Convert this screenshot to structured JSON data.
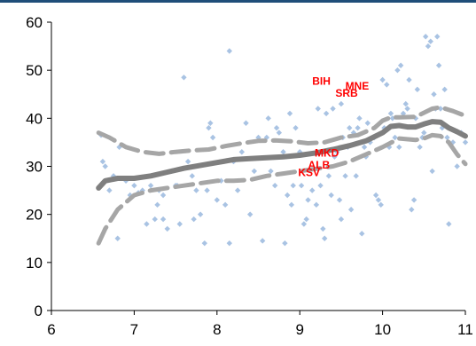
{
  "chart_data": {
    "type": "scatter",
    "xlim": [
      6,
      11
    ],
    "ylim": [
      0,
      60
    ],
    "x_ticks": [
      6,
      7,
      8,
      9,
      10,
      11
    ],
    "y_ticks": [
      0,
      10,
      20,
      30,
      40,
      50,
      60
    ],
    "grid": false,
    "legend": "none",
    "colors": {
      "points": "#a9c3e3",
      "fit": "#7f7f7f",
      "band": "#a6a6a6",
      "labels": "#ff0000",
      "axis": "#000000"
    },
    "points": [
      [
        6.6,
        36.5
      ],
      [
        6.62,
        31
      ],
      [
        6.65,
        30
      ],
      [
        6.7,
        25
      ],
      [
        6.75,
        28
      ],
      [
        6.8,
        15
      ],
      [
        6.82,
        34
      ],
      [
        6.9,
        27
      ],
      [
        6.95,
        24
      ],
      [
        7.0,
        26
      ],
      [
        7.05,
        24.5
      ],
      [
        7.1,
        25
      ],
      [
        7.15,
        18
      ],
      [
        7.2,
        26
      ],
      [
        7.25,
        19
      ],
      [
        7.28,
        22
      ],
      [
        7.3,
        25
      ],
      [
        7.35,
        24
      ],
      [
        7.35,
        19
      ],
      [
        7.4,
        17
      ],
      [
        7.45,
        29
      ],
      [
        7.5,
        26
      ],
      [
        7.52,
        26
      ],
      [
        7.55,
        18
      ],
      [
        7.6,
        48.5
      ],
      [
        7.65,
        31
      ],
      [
        7.7,
        28
      ],
      [
        7.72,
        19
      ],
      [
        7.75,
        25
      ],
      [
        7.8,
        20
      ],
      [
        7.85,
        14
      ],
      [
        7.88,
        25
      ],
      [
        7.9,
        38
      ],
      [
        7.92,
        39
      ],
      [
        7.95,
        36
      ],
      [
        8.0,
        23
      ],
      [
        8.05,
        27
      ],
      [
        8.1,
        22
      ],
      [
        8.15,
        54
      ],
      [
        8.15,
        14
      ],
      [
        8.2,
        31
      ],
      [
        8.25,
        25
      ],
      [
        8.3,
        33
      ],
      [
        8.35,
        39
      ],
      [
        8.4,
        20
      ],
      [
        8.45,
        29
      ],
      [
        8.5,
        36
      ],
      [
        8.55,
        14.5
      ],
      [
        8.6,
        36
      ],
      [
        8.62,
        40
      ],
      [
        8.65,
        29
      ],
      [
        8.7,
        26
      ],
      [
        8.72,
        38
      ],
      [
        8.75,
        37
      ],
      [
        8.8,
        33
      ],
      [
        8.82,
        14
      ],
      [
        8.85,
        24
      ],
      [
        8.88,
        41
      ],
      [
        8.9,
        22
      ],
      [
        8.92,
        26
      ],
      [
        8.95,
        38
      ],
      [
        9.0,
        33
      ],
      [
        9.02,
        26
      ],
      [
        9.05,
        18
      ],
      [
        9.08,
        19
      ],
      [
        9.1,
        23
      ],
      [
        9.15,
        25
      ],
      [
        9.2,
        22
      ],
      [
        9.22,
        42
      ],
      [
        9.25,
        26
      ],
      [
        9.28,
        17
      ],
      [
        9.3,
        15
      ],
      [
        9.32,
        41
      ],
      [
        9.35,
        28
      ],
      [
        9.38,
        24
      ],
      [
        9.4,
        42
      ],
      [
        9.42,
        32
      ],
      [
        9.45,
        33
      ],
      [
        9.48,
        23
      ],
      [
        9.5,
        19
      ],
      [
        9.5,
        43
      ],
      [
        9.52,
        36
      ],
      [
        9.55,
        28
      ],
      [
        9.58,
        34
      ],
      [
        9.6,
        38
      ],
      [
        9.62,
        21
      ],
      [
        9.65,
        37
      ],
      [
        9.68,
        28
      ],
      [
        9.7,
        38
      ],
      [
        9.72,
        40
      ],
      [
        9.75,
        16
      ],
      [
        9.78,
        34
      ],
      [
        9.8,
        32
      ],
      [
        9.82,
        39
      ],
      [
        9.85,
        35
      ],
      [
        9.9,
        36
      ],
      [
        9.92,
        24
      ],
      [
        9.95,
        23
      ],
      [
        9.98,
        22
      ],
      [
        10.0,
        48
      ],
      [
        10.02,
        38
      ],
      [
        10.05,
        47
      ],
      [
        10.08,
        34
      ],
      [
        10.1,
        41
      ],
      [
        10.12,
        40
      ],
      [
        10.15,
        36
      ],
      [
        10.18,
        50
      ],
      [
        10.2,
        34
      ],
      [
        10.22,
        51
      ],
      [
        10.25,
        41
      ],
      [
        10.28,
        43
      ],
      [
        10.3,
        42
      ],
      [
        10.32,
        48
      ],
      [
        10.35,
        21
      ],
      [
        10.38,
        23
      ],
      [
        10.4,
        40
      ],
      [
        10.42,
        46
      ],
      [
        10.45,
        34
      ],
      [
        10.48,
        36
      ],
      [
        10.5,
        37
      ],
      [
        10.52,
        57
      ],
      [
        10.55,
        55
      ],
      [
        10.58,
        56
      ],
      [
        10.6,
        29
      ],
      [
        10.62,
        45
      ],
      [
        10.64,
        42
      ],
      [
        10.66,
        57
      ],
      [
        10.68,
        51
      ],
      [
        10.7,
        42
      ],
      [
        10.72,
        38
      ],
      [
        10.75,
        46
      ],
      [
        10.78,
        36
      ],
      [
        10.8,
        18
      ],
      [
        10.85,
        35
      ],
      [
        10.9,
        30
      ],
      [
        10.95,
        37
      ],
      [
        11.0,
        35
      ]
    ],
    "fit_line": [
      [
        6.57,
        25.5
      ],
      [
        6.65,
        27
      ],
      [
        6.8,
        27.5
      ],
      [
        7.0,
        27.5
      ],
      [
        7.2,
        28
      ],
      [
        7.4,
        28.8
      ],
      [
        7.6,
        29.6
      ],
      [
        7.8,
        30.2
      ],
      [
        8.0,
        30.8
      ],
      [
        8.2,
        31.4
      ],
      [
        8.4,
        31.6
      ],
      [
        8.6,
        31.8
      ],
      [
        8.8,
        32
      ],
      [
        9.0,
        32.3
      ],
      [
        9.2,
        32.8
      ],
      [
        9.4,
        33.5
      ],
      [
        9.6,
        34.3
      ],
      [
        9.8,
        35.3
      ],
      [
        10.0,
        37
      ],
      [
        10.1,
        38.3
      ],
      [
        10.2,
        38.5
      ],
      [
        10.3,
        38.2
      ],
      [
        10.4,
        38.2
      ],
      [
        10.5,
        38.8
      ],
      [
        10.6,
        39.3
      ],
      [
        10.7,
        39.2
      ],
      [
        10.8,
        38
      ],
      [
        10.9,
        37.2
      ],
      [
        11.0,
        36.3
      ]
    ],
    "upper_band": [
      [
        6.57,
        37
      ],
      [
        6.7,
        36
      ],
      [
        6.9,
        34
      ],
      [
        7.1,
        33
      ],
      [
        7.3,
        32.6
      ],
      [
        7.5,
        33
      ],
      [
        7.7,
        33.3
      ],
      [
        7.9,
        33.5
      ],
      [
        8.1,
        34.2
      ],
      [
        8.3,
        34.8
      ],
      [
        8.5,
        35.3
      ],
      [
        8.7,
        35.4
      ],
      [
        8.9,
        35.2
      ],
      [
        9.1,
        34.8
      ],
      [
        9.3,
        35
      ],
      [
        9.5,
        36
      ],
      [
        9.7,
        36.5
      ],
      [
        9.9,
        38
      ],
      [
        10.0,
        39.5
      ],
      [
        10.1,
        40.2
      ],
      [
        10.2,
        40.2
      ],
      [
        10.4,
        40.3
      ],
      [
        10.6,
        42
      ],
      [
        10.7,
        42.3
      ],
      [
        10.85,
        41.5
      ],
      [
        11.0,
        40.5
      ]
    ],
    "lower_band": [
      [
        6.57,
        14
      ],
      [
        6.65,
        17
      ],
      [
        6.8,
        21
      ],
      [
        7.0,
        24
      ],
      [
        7.2,
        25
      ],
      [
        7.4,
        25.5
      ],
      [
        7.6,
        26
      ],
      [
        7.8,
        26.5
      ],
      [
        8.0,
        27
      ],
      [
        8.2,
        27
      ],
      [
        8.4,
        27.2
      ],
      [
        8.6,
        28
      ],
      [
        8.8,
        28.5
      ],
      [
        9.0,
        29
      ],
      [
        9.2,
        29.5
      ],
      [
        9.4,
        30
      ],
      [
        9.6,
        31
      ],
      [
        9.8,
        32.5
      ],
      [
        10.0,
        34
      ],
      [
        10.2,
        35.8
      ],
      [
        10.4,
        35.5
      ],
      [
        10.5,
        35.8
      ],
      [
        10.6,
        36.5
      ],
      [
        10.7,
        36.3
      ],
      [
        10.8,
        35
      ],
      [
        10.9,
        32.5
      ],
      [
        11.0,
        30.5
      ]
    ],
    "country_labels": [
      {
        "text": "BIH",
        "x": 9.15,
        "y": 47
      },
      {
        "text": "MNE",
        "x": 9.55,
        "y": 46
      },
      {
        "text": "SRB",
        "x": 9.43,
        "y": 44.5
      },
      {
        "text": "MKD",
        "x": 9.18,
        "y": 32
      },
      {
        "text": "ALB",
        "x": 9.1,
        "y": 29.5
      },
      {
        "text": "KSV",
        "x": 8.98,
        "y": 28
      }
    ]
  }
}
